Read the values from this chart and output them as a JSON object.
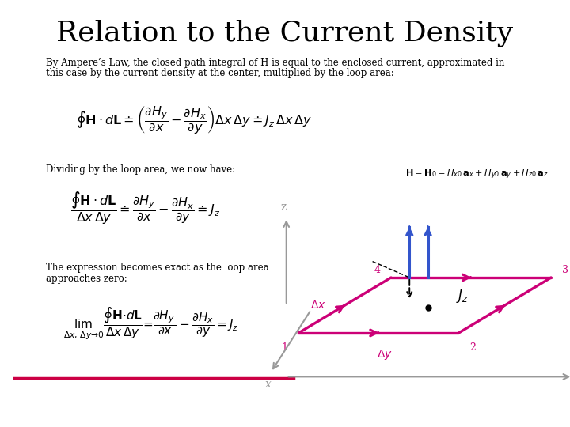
{
  "title": "Relation to the Current Density",
  "title_fontsize": 26,
  "bg_color": "#ffffff",
  "text_color": "#000000",
  "magenta_color": "#cc0077",
  "blue_color": "#3355cc",
  "gray_color": "#999999",
  "body_text1_line1": "By Ampere’s Law, the closed path integral of H is equal to the enclosed current, approximated in",
  "body_text1_line2": "this case by the current density at the center, multiplied by the loop area:",
  "body_text2": "Dividing by the loop area, we now have:",
  "body_text3_line1": "The expression becomes exact as the loop area",
  "body_text3_line2": "approaches zero:",
  "underline_color": "#cc0044",
  "corner_labels": [
    "1",
    "2",
    "3",
    "4"
  ]
}
